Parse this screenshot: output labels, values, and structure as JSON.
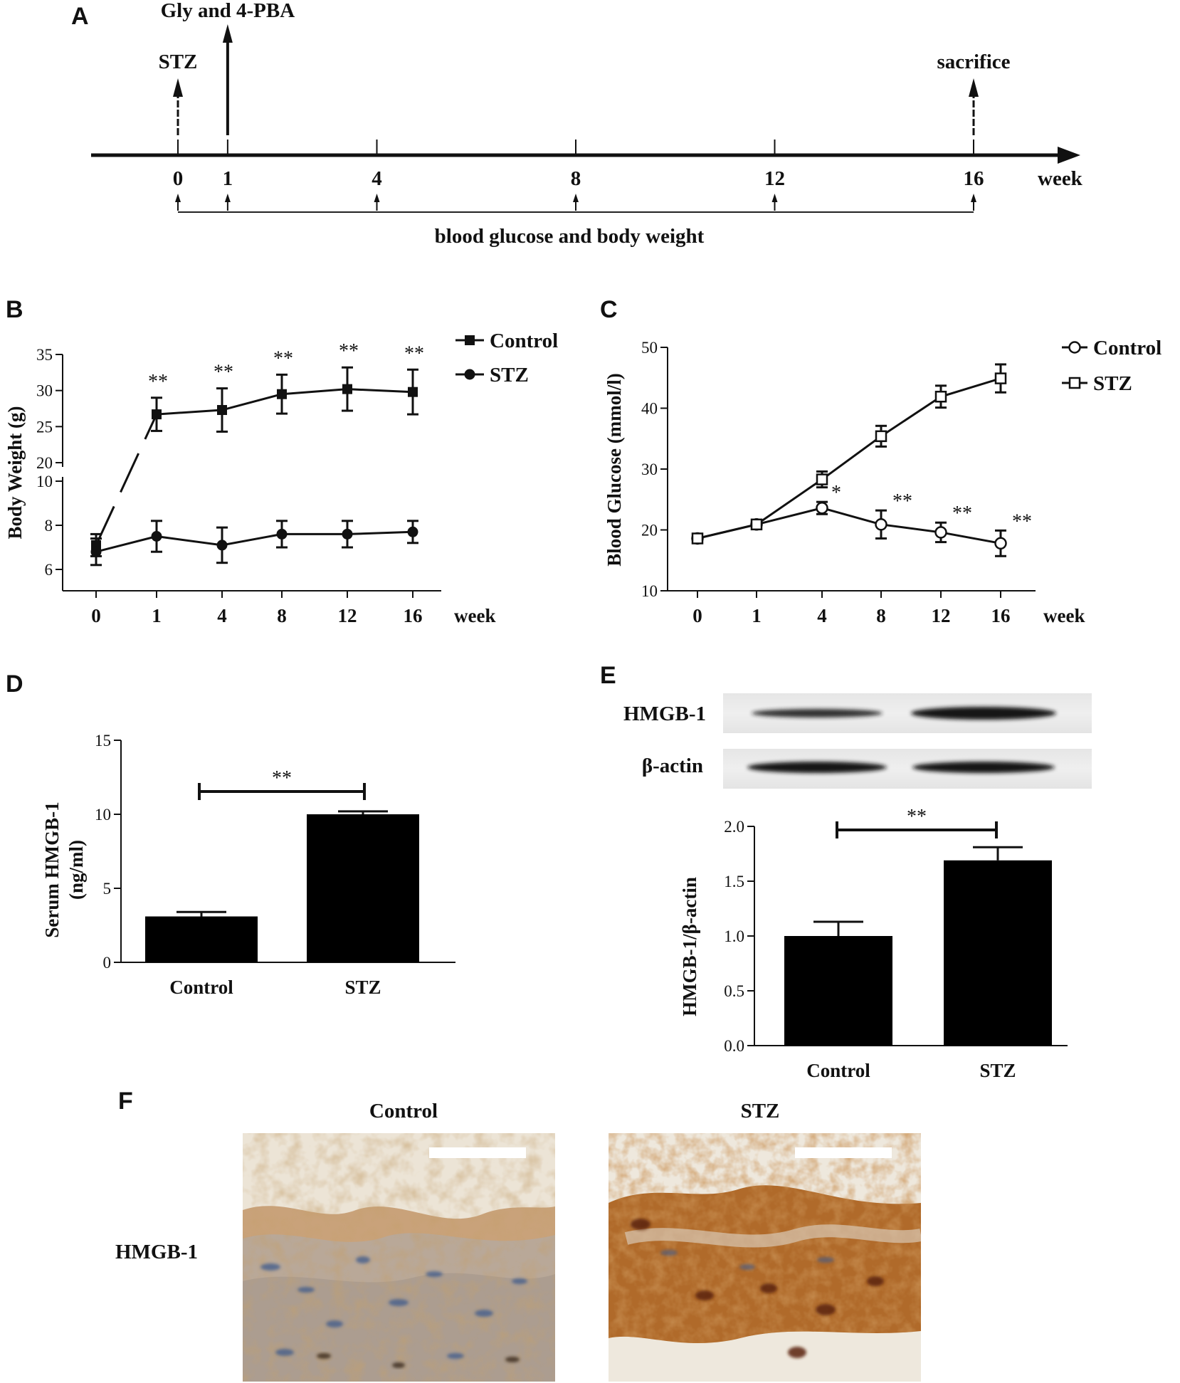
{
  "panels": {
    "A": "A",
    "B": "B",
    "C": "C",
    "D": "D",
    "E": "E",
    "F": "F"
  },
  "timeline": {
    "events": [
      {
        "label": "STZ",
        "week": 0
      },
      {
        "label": "Gly and 4-PBA",
        "week": 1
      },
      {
        "label": "sacrifice",
        "week": 16
      }
    ],
    "ticks": [
      "0",
      "1",
      "4",
      "8",
      "12",
      "16"
    ],
    "unit": "week",
    "bracket_label": "blood glucose and body weight"
  },
  "chart_data": [
    {
      "panel": "B",
      "type": "line",
      "xlabel": "week",
      "ylabel": "Body Weight (g)",
      "categories": [
        "0",
        "1",
        "4",
        "8",
        "12",
        "16"
      ],
      "y_axis_break": true,
      "yticks_upper": [
        "20",
        "25",
        "30",
        "35"
      ],
      "yticks_lower": [
        "6",
        "8",
        "10"
      ],
      "series": [
        {
          "name": "Control",
          "marker": "filled-square",
          "values": [
            7.1,
            26.7,
            27.3,
            29.5,
            30.2,
            29.8
          ],
          "errors": [
            0.5,
            2.3,
            3.0,
            2.7,
            3.0,
            3.1
          ]
        },
        {
          "name": "STZ",
          "marker": "filled-circle",
          "values": [
            6.8,
            7.5,
            7.1,
            7.6,
            7.6,
            7.7
          ],
          "errors": [
            0.6,
            0.7,
            0.8,
            0.6,
            0.6,
            0.5
          ]
        }
      ],
      "annotations": [
        "",
        "**",
        "**",
        "**",
        "**",
        "**"
      ]
    },
    {
      "panel": "C",
      "type": "line",
      "xlabel": "week",
      "ylabel": "Blood Glucose (mmol/l)",
      "categories": [
        "0",
        "1",
        "4",
        "8",
        "12",
        "16"
      ],
      "ylim": [
        10,
        50
      ],
      "yticks": [
        "10",
        "20",
        "30",
        "40",
        "50"
      ],
      "series": [
        {
          "name": "Control",
          "marker": "open-circle",
          "values": [
            18.6,
            20.9,
            23.6,
            20.9,
            19.6,
            17.8
          ],
          "errors": [
            0.6,
            0.6,
            1.0,
            2.3,
            1.6,
            2.1
          ]
        },
        {
          "name": "STZ",
          "marker": "open-square",
          "values": [
            18.6,
            20.9,
            28.3,
            35.4,
            41.9,
            44.9
          ],
          "errors": [
            0.6,
            0.6,
            1.3,
            1.7,
            1.8,
            2.3
          ]
        }
      ],
      "annotations": [
        "",
        "",
        "*",
        "**",
        "**",
        "**"
      ]
    },
    {
      "panel": "D",
      "type": "bar",
      "ylabel": "Serum HMGB-1\n(ng/ml)",
      "categories": [
        "Control",
        "STZ"
      ],
      "values": [
        3.1,
        10.0
      ],
      "errors": [
        0.3,
        0.2
      ],
      "ylim": [
        0,
        15
      ],
      "yticks": [
        "0",
        "5",
        "10",
        "15"
      ],
      "significance": "**"
    },
    {
      "panel": "E",
      "type": "bar",
      "ylabel": "HMGB-1/β-actin",
      "categories": [
        "Control",
        "STZ"
      ],
      "values": [
        1.0,
        1.69
      ],
      "errors": [
        0.13,
        0.12
      ],
      "ylim": [
        0.0,
        2.0
      ],
      "yticks": [
        "0.0",
        "0.5",
        "1.0",
        "1.5",
        "2.0"
      ],
      "significance": "**"
    }
  ],
  "blot": {
    "rows": [
      "HMGB-1",
      "β-actin"
    ]
  },
  "ihc": {
    "row_label": "HMGB-1",
    "columns": [
      "Control",
      "STZ"
    ]
  }
}
